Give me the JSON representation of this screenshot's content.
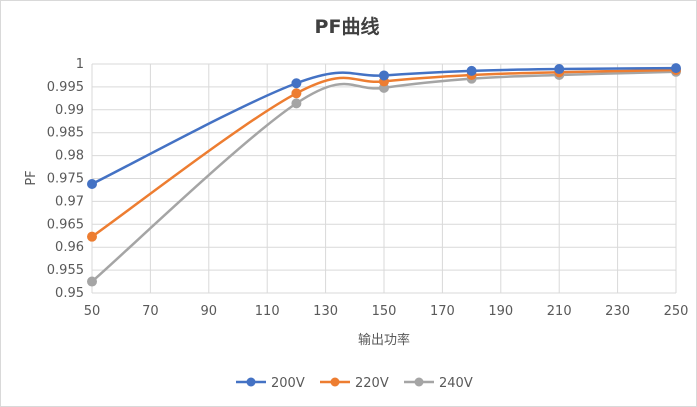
{
  "chart_data": {
    "type": "line",
    "title": "PF曲线",
    "xlabel": "输出功率",
    "ylabel": "PF",
    "xlim": [
      50,
      250
    ],
    "ylim": [
      0.95,
      1.0
    ],
    "xticks": [
      50,
      70,
      90,
      110,
      130,
      150,
      170,
      190,
      210,
      230,
      250
    ],
    "yticks": [
      0.95,
      0.955,
      0.96,
      0.965,
      0.97,
      0.975,
      0.98,
      0.985,
      0.99,
      0.995,
      1.0
    ],
    "ytick_labels": [
      "0.95",
      "0.955",
      "0.96",
      "0.965",
      "0.97",
      "0.975",
      "0.98",
      "0.985",
      "0.99",
      "0.995",
      "1"
    ],
    "grid": true,
    "legend_position": "bottom",
    "x": [
      50,
      120,
      150,
      180,
      210,
      250
    ],
    "series": [
      {
        "name": "200V",
        "color": "#4472c4",
        "values": [
          0.9738,
          0.9958,
          0.9975,
          0.9985,
          0.9989,
          0.9991
        ]
      },
      {
        "name": "220V",
        "color": "#ed7d31",
        "values": [
          0.9623,
          0.9936,
          0.9962,
          0.9976,
          0.9982,
          0.9987
        ]
      },
      {
        "name": "240V",
        "color": "#a5a5a5",
        "values": [
          0.9525,
          0.9914,
          0.9948,
          0.9968,
          0.9976,
          0.9983
        ]
      }
    ]
  }
}
